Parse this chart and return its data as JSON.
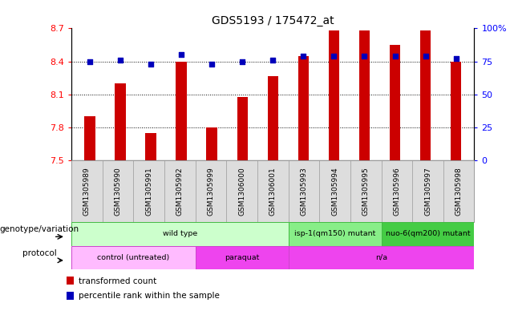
{
  "title": "GDS5193 / 175472_at",
  "samples": [
    "GSM1305989",
    "GSM1305990",
    "GSM1305991",
    "GSM1305992",
    "GSM1305999",
    "GSM1306000",
    "GSM1306001",
    "GSM1305993",
    "GSM1305994",
    "GSM1305995",
    "GSM1305996",
    "GSM1305997",
    "GSM1305998"
  ],
  "transformed_counts": [
    7.9,
    8.2,
    7.75,
    8.4,
    7.8,
    8.08,
    8.27,
    8.45,
    8.68,
    8.68,
    8.55,
    8.68,
    8.4
  ],
  "percentile_ranks": [
    75,
    76,
    73,
    80,
    73,
    75,
    76,
    79,
    79,
    79,
    79,
    79,
    77
  ],
  "ylim_left": [
    7.5,
    8.7
  ],
  "ylim_right": [
    0,
    100
  ],
  "yticks_left": [
    7.5,
    7.8,
    8.1,
    8.4,
    8.7
  ],
  "yticks_right": [
    0,
    25,
    50,
    75,
    100
  ],
  "ytick_labels_left": [
    "7.5",
    "7.8",
    "8.1",
    "8.4",
    "8.7"
  ],
  "ytick_labels_right": [
    "0",
    "25",
    "50",
    "75",
    "100%"
  ],
  "bar_color": "#cc0000",
  "dot_color": "#0000bb",
  "bar_bottom": 7.5,
  "grid_values": [
    7.8,
    8.1,
    8.4
  ],
  "bar_width": 0.35,
  "genotype_groups": [
    {
      "text": "wild type",
      "start": 0,
      "end": 6,
      "color": "#ccffcc",
      "border": "#44bb44"
    },
    {
      "text": "isp-1(qm150) mutant",
      "start": 7,
      "end": 9,
      "color": "#88ee88",
      "border": "#44bb44"
    },
    {
      "text": "nuo-6(qm200) mutant",
      "start": 10,
      "end": 12,
      "color": "#44cc44",
      "border": "#44bb44"
    }
  ],
  "protocol_groups": [
    {
      "text": "control (untreated)",
      "start": 0,
      "end": 3,
      "color": "#ffbbff",
      "border": "#cc44cc"
    },
    {
      "text": "paraquat",
      "start": 4,
      "end": 6,
      "color": "#ee44ee",
      "border": "#cc44cc"
    },
    {
      "text": "n/a",
      "start": 7,
      "end": 12,
      "color": "#ee44ee",
      "border": "#cc44cc"
    }
  ],
  "genotype_label": "genotype/variation",
  "protocol_label": "protocol",
  "legend_items": [
    {
      "color": "#cc0000",
      "label": "transformed count"
    },
    {
      "color": "#0000bb",
      "label": "percentile rank within the sample"
    }
  ],
  "sample_cell_color": "#dddddd",
  "sample_cell_border": "#999999"
}
